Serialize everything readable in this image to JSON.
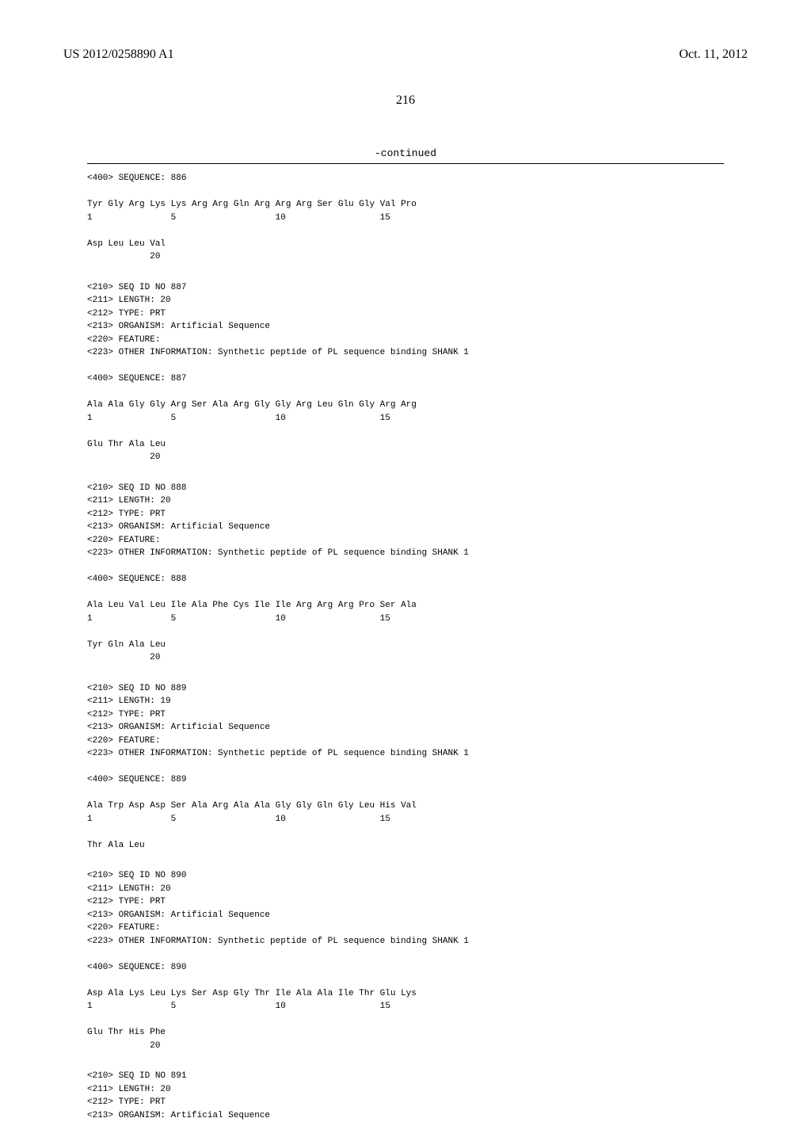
{
  "header": {
    "pub_number": "US 2012/0258890 A1",
    "pub_date": "Oct. 11, 2012"
  },
  "page_number": "216",
  "continued_label": "-continued",
  "sequences": [
    {
      "lines": [
        "<400> SEQUENCE: 886",
        "",
        "Tyr Gly Arg Lys Lys Arg Arg Gln Arg Arg Arg Ser Glu Gly Val Pro",
        "1               5                   10                  15",
        "",
        "Asp Leu Leu Val",
        "            20"
      ]
    },
    {
      "lines": [
        "<210> SEQ ID NO 887",
        "<211> LENGTH: 20",
        "<212> TYPE: PRT",
        "<213> ORGANISM: Artificial Sequence",
        "<220> FEATURE:",
        "<223> OTHER INFORMATION: Synthetic peptide of PL sequence binding SHANK 1",
        "",
        "<400> SEQUENCE: 887",
        "",
        "Ala Ala Gly Gly Arg Ser Ala Arg Gly Gly Arg Leu Gln Gly Arg Arg",
        "1               5                   10                  15",
        "",
        "Glu Thr Ala Leu",
        "            20"
      ]
    },
    {
      "lines": [
        "<210> SEQ ID NO 888",
        "<211> LENGTH: 20",
        "<212> TYPE: PRT",
        "<213> ORGANISM: Artificial Sequence",
        "<220> FEATURE:",
        "<223> OTHER INFORMATION: Synthetic peptide of PL sequence binding SHANK 1",
        "",
        "<400> SEQUENCE: 888",
        "",
        "Ala Leu Val Leu Ile Ala Phe Cys Ile Ile Arg Arg Arg Pro Ser Ala",
        "1               5                   10                  15",
        "",
        "Tyr Gln Ala Leu",
        "            20"
      ]
    },
    {
      "lines": [
        "<210> SEQ ID NO 889",
        "<211> LENGTH: 19",
        "<212> TYPE: PRT",
        "<213> ORGANISM: Artificial Sequence",
        "<220> FEATURE:",
        "<223> OTHER INFORMATION: Synthetic peptide of PL sequence binding SHANK 1",
        "",
        "<400> SEQUENCE: 889",
        "",
        "Ala Trp Asp Asp Ser Ala Arg Ala Ala Gly Gly Gln Gly Leu His Val",
        "1               5                   10                  15",
        "",
        "Thr Ala Leu"
      ]
    },
    {
      "lines": [
        "<210> SEQ ID NO 890",
        "<211> LENGTH: 20",
        "<212> TYPE: PRT",
        "<213> ORGANISM: Artificial Sequence",
        "<220> FEATURE:",
        "<223> OTHER INFORMATION: Synthetic peptide of PL sequence binding SHANK 1",
        "",
        "<400> SEQUENCE: 890",
        "",
        "Asp Ala Lys Leu Lys Ser Asp Gly Thr Ile Ala Ala Ile Thr Glu Lys",
        "1               5                   10                  15",
        "",
        "Glu Thr His Phe",
        "            20"
      ]
    },
    {
      "lines": [
        "<210> SEQ ID NO 891",
        "<211> LENGTH: 20",
        "<212> TYPE: PRT",
        "<213> ORGANISM: Artificial Sequence"
      ]
    }
  ]
}
